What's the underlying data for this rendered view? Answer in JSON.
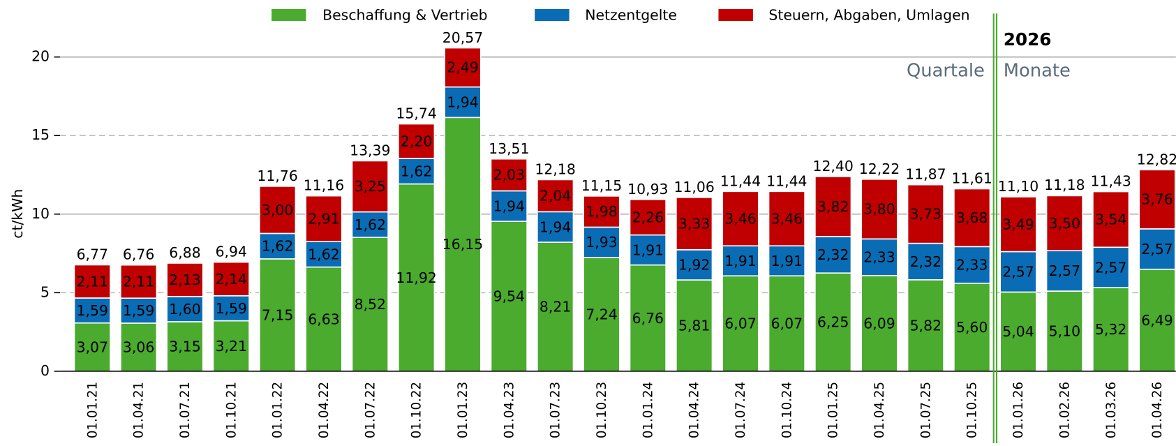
{
  "chart_data": {
    "type": "stacked_bar",
    "y_label": "ct/kWh",
    "categories": [
      "01.01.21",
      "01.04.21",
      "01.07.21",
      "01.10.21",
      "01.01.22",
      "01.04.22",
      "01.07.22",
      "01.10.22",
      "01.01.23",
      "01.04.23",
      "01.07.23",
      "01.10.23",
      "01.01.24",
      "01.04.24",
      "01.07.24",
      "01.10.24",
      "01.01.25",
      "01.04.25",
      "01.07.25",
      "01.10.25",
      "01.01.26",
      "01.02.26",
      "01.03.26",
      "01.04.26"
    ],
    "series": [
      {
        "name": "Beschaffung & Vertrieb",
        "color": "#4aab2e",
        "values": [
          3.07,
          3.06,
          3.15,
          3.21,
          7.15,
          6.63,
          8.52,
          11.92,
          16.15,
          9.54,
          8.21,
          7.24,
          6.76,
          5.81,
          6.07,
          6.07,
          6.25,
          6.09,
          5.82,
          5.6,
          5.04,
          5.1,
          5.32,
          6.49
        ],
        "value_labels": [
          "3,07",
          "3,06",
          "3,15",
          "3,21",
          "7,15",
          "6,63",
          "8,52",
          "11,92",
          "16,15",
          "9,54",
          "8,21",
          "7,24",
          "6,76",
          "5,81",
          "6,07",
          "6,07",
          "6,25",
          "6,09",
          "5,82",
          "5,60",
          "5,04",
          "5,10",
          "5,32",
          "6,49"
        ]
      },
      {
        "name": "Netzentgelte",
        "color": "#0a6cb4",
        "values": [
          1.59,
          1.59,
          1.6,
          1.59,
          1.62,
          1.62,
          1.62,
          1.62,
          1.94,
          1.94,
          1.94,
          1.93,
          1.91,
          1.92,
          1.91,
          1.91,
          2.32,
          2.33,
          2.32,
          2.33,
          2.57,
          2.57,
          2.57,
          2.57
        ],
        "value_labels": [
          "1,59",
          "1,59",
          "1,60",
          "1,59",
          "1,62",
          "1,62",
          "1,62",
          "1,62",
          "1,94",
          "1,94",
          "1,94",
          "1,93",
          "1,91",
          "1,92",
          "1,91",
          "1,91",
          "2,32",
          "2,33",
          "2,32",
          "2,33",
          "2,57",
          "2,57",
          "2,57",
          "2,57"
        ]
      },
      {
        "name": "Steuern, Abgaben, Umlagen",
        "color": "#c00000",
        "values": [
          2.11,
          2.11,
          2.13,
          2.14,
          3.0,
          2.91,
          3.25,
          2.2,
          2.49,
          2.03,
          2.04,
          1.98,
          2.26,
          3.33,
          3.46,
          3.46,
          3.82,
          3.8,
          3.73,
          3.68,
          3.49,
          3.5,
          3.54,
          3.76
        ],
        "value_labels": [
          "2,11",
          "2,11",
          "2,13",
          "2,14",
          "3,00",
          "2,91",
          "3,25",
          "2,20",
          "2,49",
          "2,03",
          "2,04",
          "1,98",
          "2,26",
          "3,33",
          "3,46",
          "3,46",
          "3,82",
          "3,80",
          "3,73",
          "3,68",
          "3,49",
          "3,50",
          "3,54",
          "3,76"
        ]
      }
    ],
    "totals": [
      6.77,
      6.76,
      6.88,
      6.94,
      11.76,
      11.16,
      13.39,
      15.74,
      20.57,
      13.51,
      12.18,
      11.15,
      10.93,
      11.06,
      11.44,
      11.44,
      12.4,
      12.22,
      11.87,
      11.61,
      11.1,
      11.18,
      11.43,
      12.82
    ],
    "total_labels": [
      "6,77",
      "6,76",
      "6,88",
      "6,94",
      "11,76",
      "11,16",
      "13,39",
      "15,74",
      "20,57",
      "13,51",
      "12,18",
      "11,15",
      "10,93",
      "11,06",
      "11,44",
      "11,44",
      "12,40",
      "12,22",
      "11,87",
      "11,61",
      "11,10",
      "11,18",
      "11,43",
      "12,82"
    ],
    "annotations": [
      "2026",
      "Quartale",
      "Monate"
    ],
    "ylim": [
      0,
      22
    ],
    "yticks": [
      0,
      5,
      10,
      15,
      20
    ],
    "grid": true,
    "legend": "top"
  }
}
